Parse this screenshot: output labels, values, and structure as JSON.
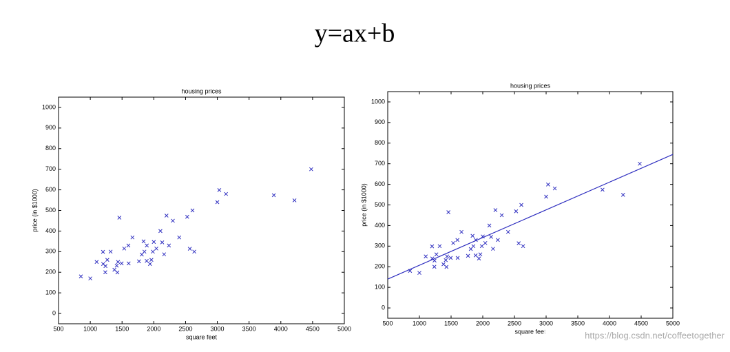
{
  "title": "y=ax+b",
  "watermark": "https://blog.csdn.net/coffeetogether",
  "chart_data": [
    {
      "type": "scatter",
      "title": "housing prices",
      "xlabel": "square feet",
      "ylabel": "price (in $1000)",
      "xlim": [
        500,
        5000
      ],
      "ylim": [
        -50,
        1050
      ],
      "xticks": [
        500,
        1000,
        1500,
        2000,
        2500,
        3000,
        3500,
        4000,
        4500,
        5000
      ],
      "yticks": [
        0,
        100,
        200,
        300,
        400,
        500,
        600,
        700,
        800,
        900,
        1000
      ],
      "series": [
        {
          "color": "#3030c0",
          "x": [
            2104,
            1600,
            2400,
            1416,
            3000,
            1985,
            1534,
            1427,
            1380,
            1494,
            1940,
            2000,
            1890,
            4478,
            1268,
            2300,
            1320,
            1236,
            2609,
            3031,
            1767,
            1888,
            1604,
            1962,
            3890,
            1100,
            1458,
            2526,
            2200,
            2637,
            1839,
            1000,
            2040,
            3137,
            1811,
            1437,
            1239,
            2132,
            4215,
            2162,
            1664,
            2238,
            2567,
            1200,
            852,
            1852,
            1203
          ],
          "values": [
            400,
            330,
            369,
            232,
            540,
            300,
            315,
            199,
            212,
            243,
            240,
            347,
            330,
            700,
            260,
            450,
            300,
            200,
            500,
            599,
            253,
            255,
            243,
            260,
            574,
            250,
            465,
            469,
            475,
            300,
            350,
            170,
            315,
            580,
            286,
            250,
            230,
            345,
            549,
            287,
            369,
            330,
            314,
            299,
            180,
            300,
            240
          ]
        }
      ]
    },
    {
      "type": "scatter",
      "title": "housing prices",
      "xlabel": "square feet",
      "ylabel": "price (in $1000)",
      "xlim": [
        500,
        5000
      ],
      "ylim": [
        -50,
        1050
      ],
      "xticks": [
        500,
        1000,
        1500,
        2000,
        2500,
        3000,
        3500,
        4000,
        4500,
        5000
      ],
      "yticks": [
        0,
        100,
        200,
        300,
        400,
        500,
        600,
        700,
        800,
        900,
        1000
      ],
      "series": [
        {
          "color": "#3030c0",
          "x": [
            2104,
            1600,
            2400,
            1416,
            3000,
            1985,
            1534,
            1427,
            1380,
            1494,
            1940,
            2000,
            1890,
            4478,
            1268,
            2300,
            1320,
            1236,
            2609,
            3031,
            1767,
            1888,
            1604,
            1962,
            3890,
            1100,
            1458,
            2526,
            2200,
            2637,
            1839,
            1000,
            2040,
            3137,
            1811,
            1437,
            1239,
            2132,
            4215,
            2162,
            1664,
            2238,
            2567,
            1200,
            852,
            1852,
            1203
          ],
          "values": [
            400,
            330,
            369,
            232,
            540,
            300,
            315,
            199,
            212,
            243,
            240,
            347,
            330,
            700,
            260,
            450,
            300,
            200,
            500,
            599,
            253,
            255,
            243,
            260,
            574,
            250,
            465,
            469,
            475,
            300,
            350,
            170,
            315,
            580,
            286,
            250,
            230,
            345,
            549,
            287,
            369,
            330,
            314,
            299,
            180,
            300,
            240
          ]
        }
      ],
      "line": {
        "color": "#3030c0",
        "x": [
          500,
          5000
        ],
        "values": [
          140,
          745
        ]
      }
    }
  ]
}
